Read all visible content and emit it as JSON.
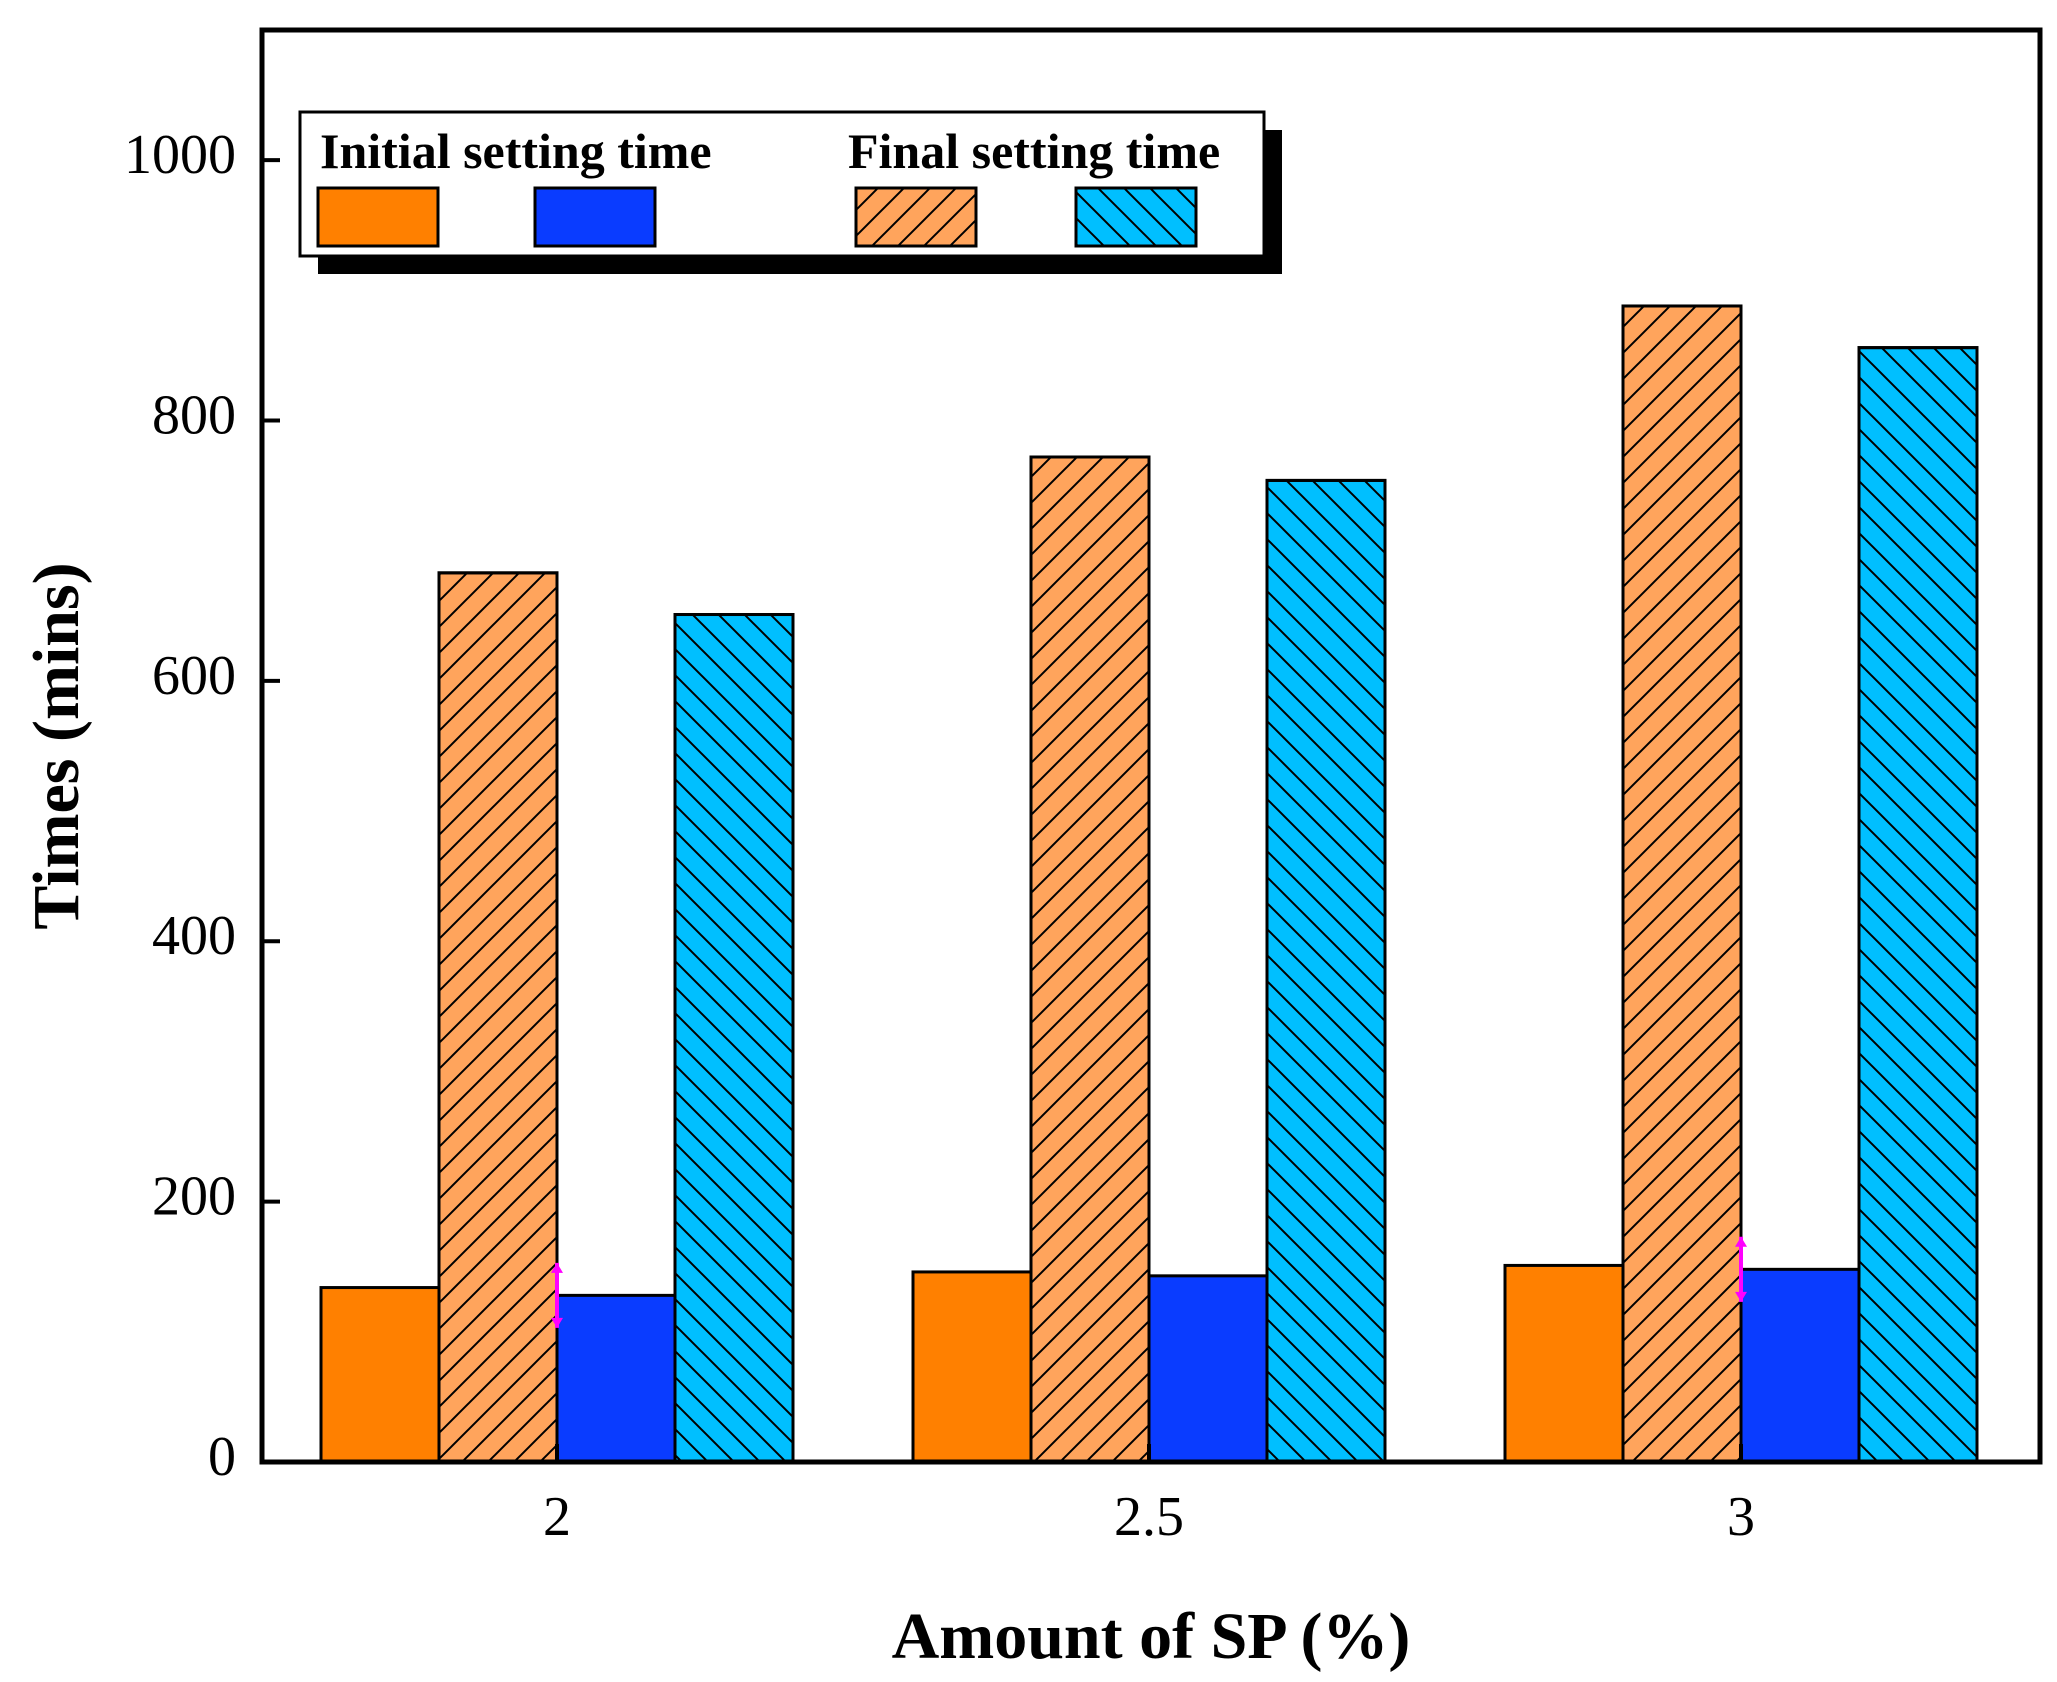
{
  "chart_data": {
    "type": "bar",
    "title": "",
    "xlabel": "Amount of SP (%)",
    "ylabel": "Times (mins)",
    "ylim": [
      0,
      1100
    ],
    "yticks": [
      "0",
      "200",
      "400",
      "600",
      "800",
      "1000"
    ],
    "categories": [
      "2",
      "2.5",
      "3"
    ],
    "grid": false,
    "legend": {
      "placement": "top-left",
      "initial_label": "Initial setting time",
      "final_label": "Final setting time"
    },
    "series": [
      {
        "name": "Initial setting time (orange)",
        "group": "initial",
        "color": "#ff8000",
        "hatch": "none",
        "values": [
          134,
          146,
          151
        ],
        "error": [
          0,
          0,
          0
        ]
      },
      {
        "name": "Final setting time (orange)",
        "group": "final",
        "color": "#ffa45c",
        "hatch": "forward",
        "values": [
          683,
          772,
          888
        ],
        "error": [
          0,
          0,
          0
        ]
      },
      {
        "name": "Initial setting time (blue)",
        "group": "initial",
        "color": "#0a3cff",
        "hatch": "none",
        "values": [
          128,
          143,
          148
        ],
        "error": [
          25,
          0,
          25
        ]
      },
      {
        "name": "Final setting time (blue)",
        "group": "final",
        "color": "#00bfff",
        "hatch": "back",
        "values": [
          651,
          754,
          856
        ],
        "error": [
          0,
          0,
          0
        ]
      }
    ],
    "error_color": "#ff00ff"
  }
}
